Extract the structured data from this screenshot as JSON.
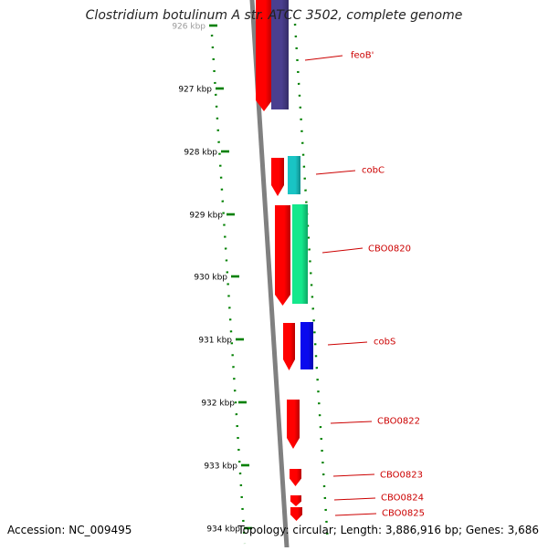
{
  "title": "Clostridium botulinum A str. ATCC 3502, complete genome",
  "accession_text": "Accession: NC_009495",
  "stats_text": "Topology: circular; Length: 3,886,916 bp; Genes: 3,686",
  "colors": {
    "backbone": "#808080",
    "tick": "#008000",
    "gene_label": "#cc0000",
    "forward_gene": "#ff0000"
  },
  "scale": {
    "ticks": [
      "926 kbp",
      "927 kbp",
      "928 kbp",
      "929 kbp",
      "930 kbp",
      "931 kbp",
      "932 kbp",
      "933 kbp",
      "934 kbp"
    ]
  },
  "genes": [
    {
      "name": "feoB'",
      "cog_color": "#4a3f8f"
    },
    {
      "name": "cobC",
      "cog_color": "#19c4c4"
    },
    {
      "name": "CBO0820",
      "cog_color": "#14e88c"
    },
    {
      "name": "cobS",
      "cog_color": "#0a0aee"
    },
    {
      "name": "CBO0822",
      "cog_color": ""
    },
    {
      "name": "CBO0823",
      "cog_color": ""
    },
    {
      "name": "CBO0824",
      "cog_color": ""
    },
    {
      "name": "CBO0825",
      "cog_color": ""
    }
  ]
}
